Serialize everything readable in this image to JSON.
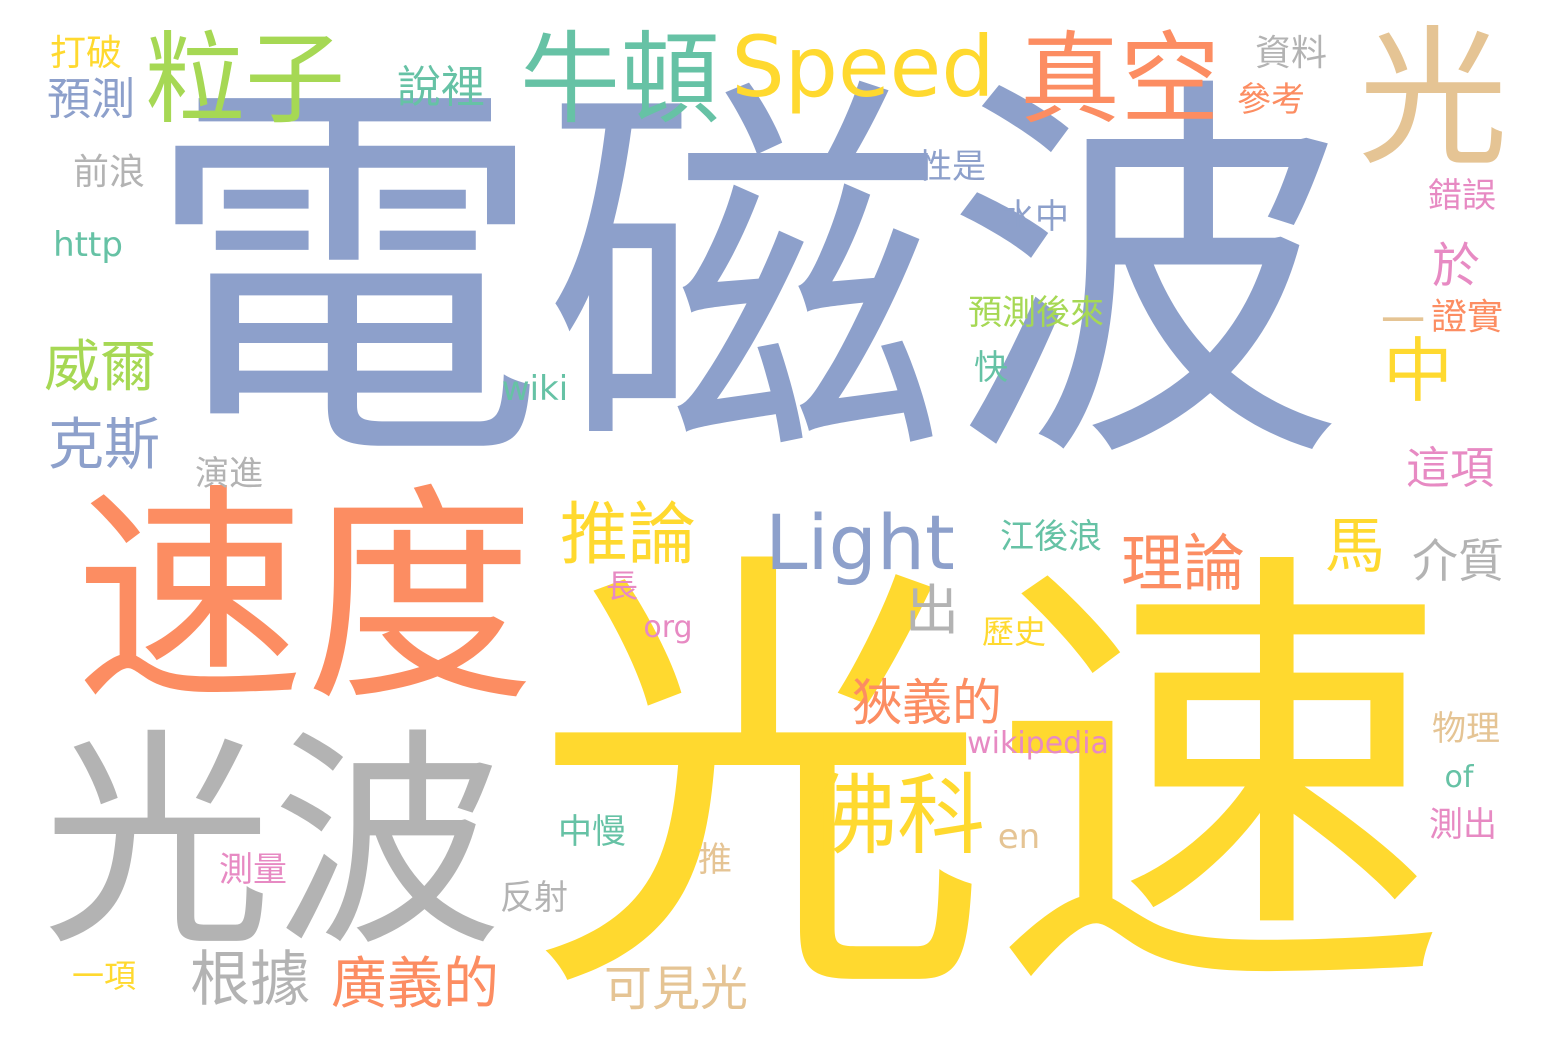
{
  "palette": {
    "blue": "#8da0cb",
    "yellow": "#ffd92f",
    "orange": "#fc8d62",
    "gray": "#b3b3b3",
    "green": "#66c2a5",
    "lime": "#a6d854",
    "tan": "#e5c494",
    "pink": "#e78ac3"
  },
  "words": [
    {
      "text": "電磁波",
      "color": "blue"
    },
    {
      "text": "光速",
      "color": "yellow"
    },
    {
      "text": "速度",
      "color": "orange"
    },
    {
      "text": "光波",
      "color": "gray"
    },
    {
      "text": "光",
      "color": "tan"
    },
    {
      "text": "粒子",
      "color": "lime"
    },
    {
      "text": "牛頓",
      "color": "green"
    },
    {
      "text": "Speed",
      "color": "yellow"
    },
    {
      "text": "真空",
      "color": "orange"
    },
    {
      "text": "Light",
      "color": "blue"
    },
    {
      "text": "佛科",
      "color": "yellow"
    },
    {
      "text": "中",
      "color": "yellow"
    },
    {
      "text": "推論",
      "color": "yellow"
    },
    {
      "text": "理論",
      "color": "orange"
    },
    {
      "text": "馬",
      "color": "yellow"
    },
    {
      "text": "威爾",
      "color": "lime"
    },
    {
      "text": "克斯",
      "color": "blue"
    },
    {
      "text": "根據",
      "color": "gray"
    },
    {
      "text": "廣義的",
      "color": "orange"
    },
    {
      "text": "狹義的",
      "color": "orange"
    },
    {
      "text": "出",
      "color": "gray"
    },
    {
      "text": "可見光",
      "color": "tan"
    },
    {
      "text": "介質",
      "color": "gray"
    },
    {
      "text": "這項",
      "color": "pink"
    },
    {
      "text": "於",
      "color": "pink"
    },
    {
      "text": "一",
      "color": "tan"
    },
    {
      "text": "證實",
      "color": "orange"
    },
    {
      "text": "預測",
      "color": "blue"
    },
    {
      "text": "說裡",
      "color": "green"
    },
    {
      "text": "打破",
      "color": "yellow"
    },
    {
      "text": "前浪",
      "color": "gray"
    },
    {
      "text": "http",
      "color": "green"
    },
    {
      "text": "資料",
      "color": "gray"
    },
    {
      "text": "參考",
      "color": "orange"
    },
    {
      "text": "錯誤",
      "color": "pink"
    },
    {
      "text": "性是",
      "color": "blue"
    },
    {
      "text": "水中",
      "color": "blue"
    },
    {
      "text": "預測後來",
      "color": "lime"
    },
    {
      "text": "快",
      "color": "green"
    },
    {
      "text": "wiki",
      "color": "green"
    },
    {
      "text": "演進",
      "color": "gray"
    },
    {
      "text": "江後浪",
      "color": "green"
    },
    {
      "text": "長",
      "color": "pink"
    },
    {
      "text": "org",
      "color": "pink"
    },
    {
      "text": "歷史",
      "color": "yellow"
    },
    {
      "text": "wikipedia",
      "color": "pink"
    },
    {
      "text": "物理",
      "color": "tan"
    },
    {
      "text": "of",
      "color": "green"
    },
    {
      "text": "測出",
      "color": "pink"
    },
    {
      "text": "en",
      "color": "tan"
    },
    {
      "text": "中慢",
      "color": "green"
    },
    {
      "text": "推",
      "color": "tan"
    },
    {
      "text": "測量",
      "color": "pink"
    },
    {
      "text": "反射",
      "color": "gray"
    },
    {
      "text": "一項",
      "color": "yellow"
    }
  ]
}
